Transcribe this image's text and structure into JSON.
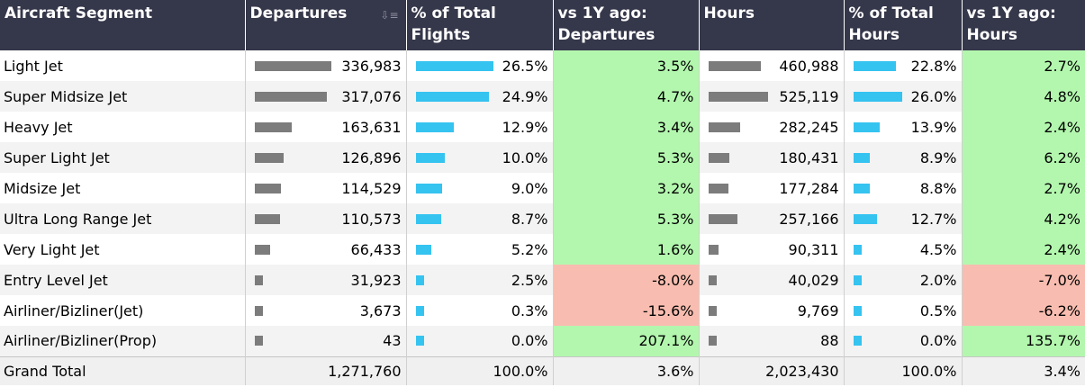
{
  "headers": {
    "segment": "Aircraft Segment",
    "departures": "Departures",
    "pct_flights": "% of Total Flights",
    "yoy_departures": "vs 1Y ago: Departures",
    "hours": "Hours",
    "pct_hours": "% of Total Hours",
    "yoy_hours": "vs 1Y ago: Hours"
  },
  "icons": {
    "sort": "sort-descending-icon"
  },
  "colors": {
    "header_bg": "#35374a",
    "bar_gray": "#7c7c7c",
    "bar_blue": "#35c3f0",
    "positive_bg": "#b3f7ae",
    "negative_bg": "#f8bdb0"
  },
  "rows": [
    {
      "segment": "Light Jet",
      "departures": "336,983",
      "dep_value": 336983,
      "pct_flights": "26.5%",
      "pct_flights_value": 26.5,
      "yoy_dep": "3.5%",
      "yoy_dep_value": 3.5,
      "hours": "460,988",
      "hours_value": 460988,
      "pct_hours": "22.8%",
      "pct_hours_value": 22.8,
      "yoy_hours": "2.7%",
      "yoy_hours_value": 2.7
    },
    {
      "segment": "Super Midsize Jet",
      "departures": "317,076",
      "dep_value": 317076,
      "pct_flights": "24.9%",
      "pct_flights_value": 24.9,
      "yoy_dep": "4.7%",
      "yoy_dep_value": 4.7,
      "hours": "525,119",
      "hours_value": 525119,
      "pct_hours": "26.0%",
      "pct_hours_value": 26.0,
      "yoy_hours": "4.8%",
      "yoy_hours_value": 4.8
    },
    {
      "segment": "Heavy Jet",
      "departures": "163,631",
      "dep_value": 163631,
      "pct_flights": "12.9%",
      "pct_flights_value": 12.9,
      "yoy_dep": "3.4%",
      "yoy_dep_value": 3.4,
      "hours": "282,245",
      "hours_value": 282245,
      "pct_hours": "13.9%",
      "pct_hours_value": 13.9,
      "yoy_hours": "2.4%",
      "yoy_hours_value": 2.4
    },
    {
      "segment": "Super Light Jet",
      "departures": "126,896",
      "dep_value": 126896,
      "pct_flights": "10.0%",
      "pct_flights_value": 10.0,
      "yoy_dep": "5.3%",
      "yoy_dep_value": 5.3,
      "hours": "180,431",
      "hours_value": 180431,
      "pct_hours": "8.9%",
      "pct_hours_value": 8.9,
      "yoy_hours": "6.2%",
      "yoy_hours_value": 6.2
    },
    {
      "segment": "Midsize Jet",
      "departures": "114,529",
      "dep_value": 114529,
      "pct_flights": "9.0%",
      "pct_flights_value": 9.0,
      "yoy_dep": "3.2%",
      "yoy_dep_value": 3.2,
      "hours": "177,284",
      "hours_value": 177284,
      "pct_hours": "8.8%",
      "pct_hours_value": 8.8,
      "yoy_hours": "2.7%",
      "yoy_hours_value": 2.7
    },
    {
      "segment": "Ultra Long Range Jet",
      "departures": "110,573",
      "dep_value": 110573,
      "pct_flights": "8.7%",
      "pct_flights_value": 8.7,
      "yoy_dep": "5.3%",
      "yoy_dep_value": 5.3,
      "hours": "257,166",
      "hours_value": 257166,
      "pct_hours": "12.7%",
      "pct_hours_value": 12.7,
      "yoy_hours": "4.2%",
      "yoy_hours_value": 4.2
    },
    {
      "segment": "Very Light Jet",
      "departures": "66,433",
      "dep_value": 66433,
      "pct_flights": "5.2%",
      "pct_flights_value": 5.2,
      "yoy_dep": "1.6%",
      "yoy_dep_value": 1.6,
      "hours": "90,311",
      "hours_value": 90311,
      "pct_hours": "4.5%",
      "pct_hours_value": 4.5,
      "yoy_hours": "2.4%",
      "yoy_hours_value": 2.4
    },
    {
      "segment": "Entry Level Jet",
      "departures": "31,923",
      "dep_value": 31923,
      "pct_flights": "2.5%",
      "pct_flights_value": 2.5,
      "yoy_dep": "-8.0%",
      "yoy_dep_value": -8.0,
      "hours": "40,029",
      "hours_value": 40029,
      "pct_hours": "2.0%",
      "pct_hours_value": 2.0,
      "yoy_hours": "-7.0%",
      "yoy_hours_value": -7.0
    },
    {
      "segment": "Airliner/Bizliner(Jet)",
      "departures": "3,673",
      "dep_value": 3673,
      "pct_flights": "0.3%",
      "pct_flights_value": 0.3,
      "yoy_dep": "-15.6%",
      "yoy_dep_value": -15.6,
      "hours": "9,769",
      "hours_value": 9769,
      "pct_hours": "0.5%",
      "pct_hours_value": 0.5,
      "yoy_hours": "-6.2%",
      "yoy_hours_value": -6.2
    },
    {
      "segment": "Airliner/Bizliner(Prop)",
      "departures": "43",
      "dep_value": 43,
      "pct_flights": "0.0%",
      "pct_flights_value": 0.0,
      "yoy_dep": "207.1%",
      "yoy_dep_value": 207.1,
      "hours": "88",
      "hours_value": 88,
      "pct_hours": "0.0%",
      "pct_hours_value": 0.0,
      "yoy_hours": "135.7%",
      "yoy_hours_value": 135.7
    }
  ],
  "total": {
    "segment": "Grand Total",
    "departures": "1,271,760",
    "pct_flights": "100.0%",
    "yoy_dep": "3.6%",
    "hours": "2,023,430",
    "pct_hours": "100.0%",
    "yoy_hours": "3.4%"
  }
}
